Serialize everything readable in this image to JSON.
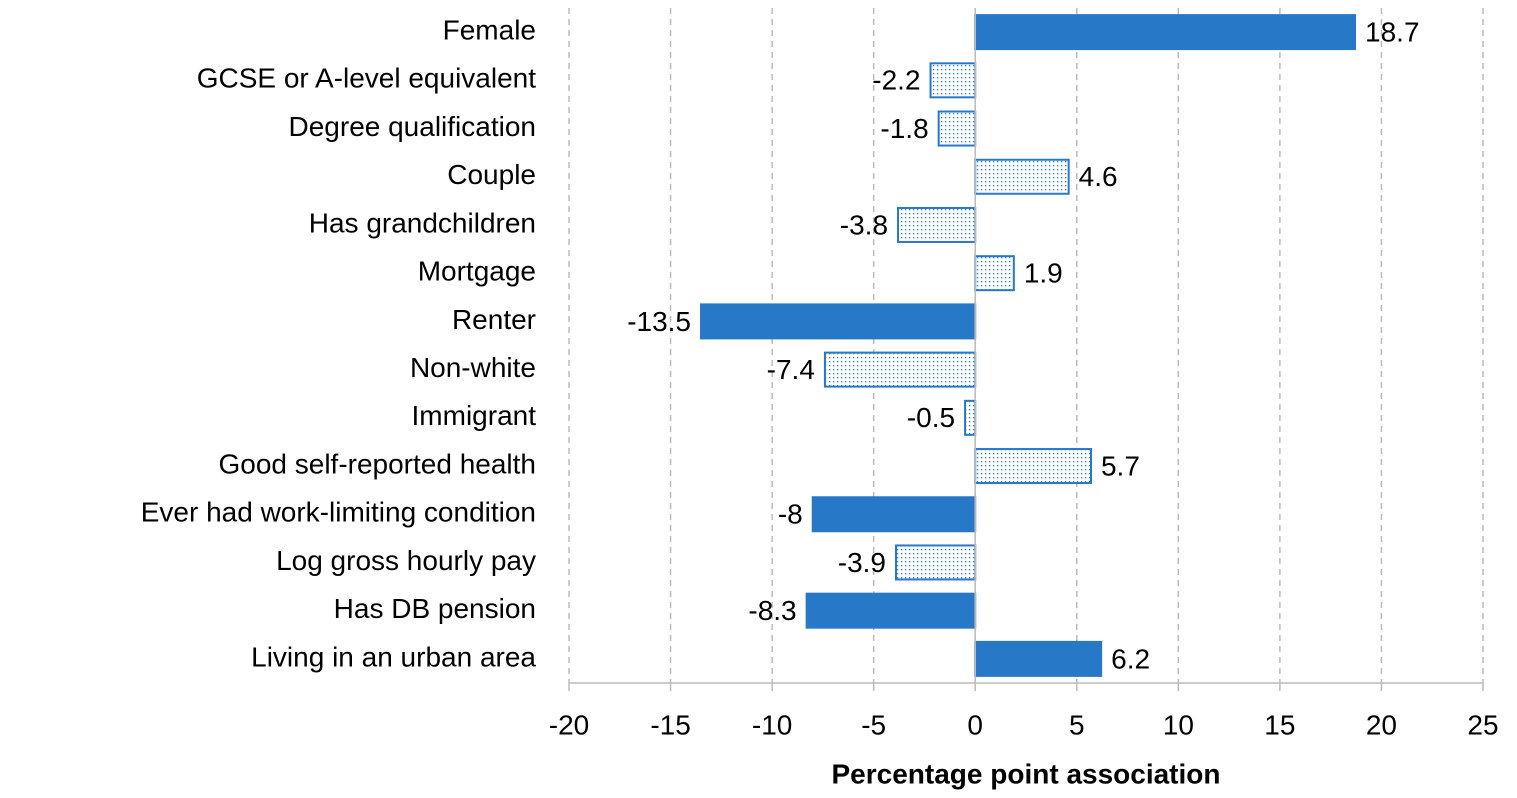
{
  "chart_data": {
    "type": "bar",
    "orientation": "horizontal",
    "x_label": "Percentage point association",
    "categories": [
      "Female",
      "GCSE or A-level equivalent",
      "Degree qualification",
      "Couple",
      "Has grandchildren",
      "Mortgage",
      "Renter",
      "Non-white",
      "Immigrant",
      "Good self-reported health",
      "Ever had work-limiting condition",
      "Log gross hourly pay",
      "Has DB pension",
      "Living in an urban area"
    ],
    "values": [
      18.7,
      -2.2,
      -1.8,
      4.6,
      -3.8,
      1.9,
      -13.5,
      -7.4,
      -0.5,
      5.7,
      -8,
      -3.9,
      -8.3,
      6.2
    ],
    "fill_styles": [
      "solid",
      "dotted",
      "dotted",
      "dotted",
      "dotted",
      "dotted",
      "solid",
      "dotted",
      "dotted",
      "dotted",
      "solid",
      "dotted",
      "solid",
      "solid"
    ],
    "color": "#2878c8",
    "xlim": [
      -20,
      25
    ],
    "xticks": [
      -20,
      -15,
      -10,
      -5,
      0,
      5,
      10,
      15,
      20,
      25
    ],
    "grid": true
  }
}
